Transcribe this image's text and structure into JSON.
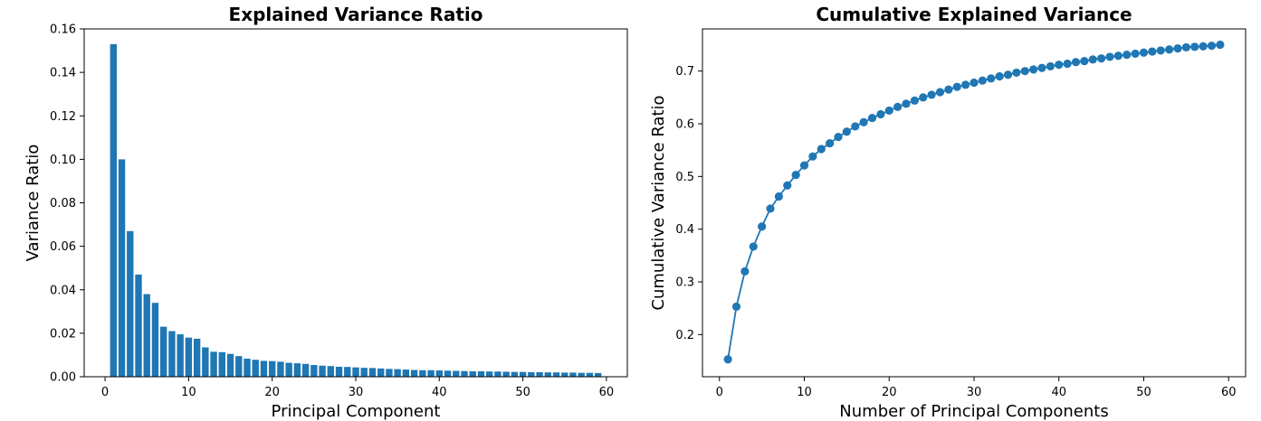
{
  "colors": {
    "series": "#1f77b4"
  },
  "chart_data": [
    {
      "type": "bar",
      "title": "Explained Variance Ratio",
      "xlabel": "Principal Component",
      "ylabel": "Variance Ratio",
      "xlim": [
        -2.5,
        62.5
      ],
      "ylim": [
        0,
        0.16
      ],
      "xticks": [
        0,
        10,
        20,
        30,
        40,
        50,
        60
      ],
      "yticks": [
        0.0,
        0.02,
        0.04,
        0.06,
        0.08,
        0.1,
        0.12,
        0.14,
        0.16
      ],
      "ytick_labels": [
        "0.00",
        "0.02",
        "0.04",
        "0.06",
        "0.08",
        "0.10",
        "0.12",
        "0.14",
        "0.16"
      ],
      "grid": false,
      "x": [
        1,
        2,
        3,
        4,
        5,
        6,
        7,
        8,
        9,
        10,
        11,
        12,
        13,
        14,
        15,
        16,
        17,
        18,
        19,
        20,
        21,
        22,
        23,
        24,
        25,
        26,
        27,
        28,
        29,
        30,
        31,
        32,
        33,
        34,
        35,
        36,
        37,
        38,
        39,
        40,
        41,
        42,
        43,
        44,
        45,
        46,
        47,
        48,
        49,
        50,
        51,
        52,
        53,
        54,
        55,
        56,
        57,
        58,
        59
      ],
      "values": [
        0.153,
        0.1,
        0.067,
        0.047,
        0.038,
        0.034,
        0.023,
        0.021,
        0.0195,
        0.018,
        0.0175,
        0.0135,
        0.0115,
        0.0113,
        0.0105,
        0.0095,
        0.0083,
        0.0078,
        0.0073,
        0.0072,
        0.0069,
        0.0064,
        0.0062,
        0.0059,
        0.0054,
        0.0051,
        0.0049,
        0.0046,
        0.0045,
        0.0043,
        0.0041,
        0.004,
        0.0038,
        0.0036,
        0.0035,
        0.0033,
        0.0031,
        0.003,
        0.003,
        0.0029,
        0.0028,
        0.0027,
        0.0026,
        0.0025,
        0.0025,
        0.0024,
        0.0024,
        0.0023,
        0.0022,
        0.0022,
        0.0021,
        0.0021,
        0.002,
        0.002,
        0.0019,
        0.0019,
        0.0018,
        0.0018,
        0.0017
      ]
    },
    {
      "type": "line",
      "title": "Cumulative Explained Variance",
      "xlabel": "Number of Principal Components",
      "ylabel": "Cumulative Variance Ratio",
      "xlim": [
        -2.0,
        62.0
      ],
      "ylim": [
        0.12,
        0.78
      ],
      "xticks": [
        0,
        10,
        20,
        30,
        40,
        50,
        60
      ],
      "yticks": [
        0.2,
        0.3,
        0.4,
        0.5,
        0.6,
        0.7
      ],
      "ytick_labels": [
        "0.2",
        "0.3",
        "0.4",
        "0.5",
        "0.6",
        "0.7"
      ],
      "grid": false,
      "markers": true,
      "x": [
        1,
        2,
        3,
        4,
        5,
        6,
        7,
        8,
        9,
        10,
        11,
        12,
        13,
        14,
        15,
        16,
        17,
        18,
        19,
        20,
        21,
        22,
        23,
        24,
        25,
        26,
        27,
        28,
        29,
        30,
        31,
        32,
        33,
        34,
        35,
        36,
        37,
        38,
        39,
        40,
        41,
        42,
        43,
        44,
        45,
        46,
        47,
        48,
        49,
        50,
        51,
        52,
        53,
        54,
        55,
        56,
        57,
        58,
        59
      ],
      "values": [
        0.153,
        0.253,
        0.32,
        0.367,
        0.405,
        0.439,
        0.462,
        0.483,
        0.503,
        0.521,
        0.538,
        0.552,
        0.563,
        0.575,
        0.585,
        0.595,
        0.603,
        0.611,
        0.618,
        0.625,
        0.632,
        0.638,
        0.644,
        0.65,
        0.655,
        0.66,
        0.665,
        0.67,
        0.674,
        0.678,
        0.682,
        0.686,
        0.69,
        0.693,
        0.697,
        0.7,
        0.703,
        0.706,
        0.709,
        0.712,
        0.714,
        0.717,
        0.719,
        0.722,
        0.724,
        0.727,
        0.729,
        0.731,
        0.733,
        0.735,
        0.737,
        0.739,
        0.741,
        0.743,
        0.745,
        0.746,
        0.747,
        0.748,
        0.75
      ]
    }
  ]
}
